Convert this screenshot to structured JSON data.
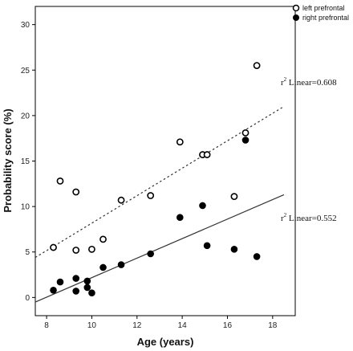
{
  "chart_data": {
    "type": "scatter",
    "xlabel": "Age (years)",
    "ylabel": "Probability score (%)",
    "xlim": [
      7.5,
      19
    ],
    "ylim": [
      -2,
      32
    ],
    "xticks": [
      8,
      10,
      12,
      14,
      16,
      18
    ],
    "yticks": [
      0,
      5,
      10,
      15,
      20,
      25,
      30
    ],
    "grid": false,
    "legend_position": "top-right",
    "series": [
      {
        "name": "left prefrontal",
        "marker": "open-circle",
        "color": "#000000",
        "points": [
          [
            8.3,
            5.5
          ],
          [
            8.6,
            12.8
          ],
          [
            9.3,
            11.6
          ],
          [
            9.3,
            5.2
          ],
          [
            10.0,
            5.3
          ],
          [
            10.5,
            6.4
          ],
          [
            11.3,
            10.7
          ],
          [
            12.6,
            11.2
          ],
          [
            13.9,
            17.1
          ],
          [
            14.9,
            15.7
          ],
          [
            15.1,
            15.7
          ],
          [
            16.3,
            11.1
          ],
          [
            16.8,
            18.1
          ],
          [
            17.3,
            25.5
          ]
        ],
        "fit": {
          "style": "dotted",
          "label_prefix": "r",
          "label_sup": "2",
          "label_text": " Linear=0.608",
          "x_range": [
            7.5,
            18.5
          ],
          "y_range": [
            4.4,
            21.0
          ]
        }
      },
      {
        "name": "right prefrontal",
        "marker": "filled-circle",
        "color": "#000000",
        "points": [
          [
            8.3,
            0.8
          ],
          [
            8.6,
            1.7
          ],
          [
            9.3,
            2.1
          ],
          [
            9.3,
            0.7
          ],
          [
            9.8,
            1.8
          ],
          [
            9.8,
            1.1
          ],
          [
            10.0,
            0.5
          ],
          [
            10.5,
            3.3
          ],
          [
            11.3,
            3.6
          ],
          [
            12.6,
            4.8
          ],
          [
            13.9,
            8.8
          ],
          [
            14.9,
            10.1
          ],
          [
            15.1,
            5.7
          ],
          [
            16.3,
            5.3
          ],
          [
            16.8,
            17.3
          ],
          [
            17.3,
            4.5
          ]
        ],
        "fit": {
          "style": "solid",
          "label_prefix": "r",
          "label_sup": "2",
          "label_text": " Linear=0.552",
          "x_range": [
            7.5,
            18.5
          ],
          "y_range": [
            -0.5,
            11.3
          ]
        }
      }
    ]
  }
}
